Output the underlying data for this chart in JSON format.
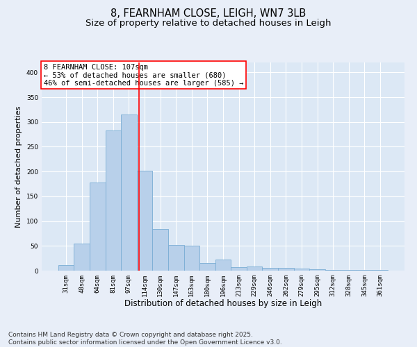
{
  "title": "8, FEARNHAM CLOSE, LEIGH, WN7 3LB",
  "subtitle": "Size of property relative to detached houses in Leigh",
  "xlabel": "Distribution of detached houses by size in Leigh",
  "ylabel": "Number of detached properties",
  "categories": [
    "31sqm",
    "48sqm",
    "64sqm",
    "81sqm",
    "97sqm",
    "114sqm",
    "130sqm",
    "147sqm",
    "163sqm",
    "180sqm",
    "196sqm",
    "213sqm",
    "229sqm",
    "246sqm",
    "262sqm",
    "279sqm",
    "295sqm",
    "312sqm",
    "328sqm",
    "345sqm",
    "361sqm"
  ],
  "values": [
    11,
    54,
    178,
    283,
    315,
    202,
    84,
    52,
    50,
    15,
    23,
    7,
    8,
    5,
    6,
    4,
    3,
    2,
    1,
    1,
    1
  ],
  "bar_color": "#b8d0ea",
  "bar_edgecolor": "#7aadd4",
  "vline_x": 4.65,
  "vline_color": "red",
  "annotation_text": "8 FEARNHAM CLOSE: 107sqm\n← 53% of detached houses are smaller (680)\n46% of semi-detached houses are larger (585) →",
  "ylim": [
    0,
    420
  ],
  "yticks": [
    0,
    50,
    100,
    150,
    200,
    250,
    300,
    350,
    400
  ],
  "fig_facecolor": "#e8eef8",
  "ax_facecolor": "#dce8f5",
  "grid_color": "#ffffff",
  "footer": "Contains HM Land Registry data © Crown copyright and database right 2025.\nContains public sector information licensed under the Open Government Licence v3.0.",
  "title_fontsize": 10.5,
  "subtitle_fontsize": 9.5,
  "annotation_fontsize": 7.5,
  "footer_fontsize": 6.5,
  "xlabel_fontsize": 8.5,
  "ylabel_fontsize": 8.0,
  "tick_fontsize": 6.5
}
